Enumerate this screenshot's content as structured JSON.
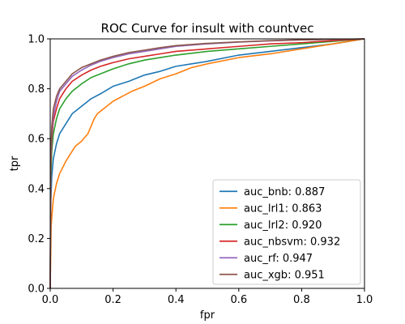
{
  "chart_data": {
    "type": "line",
    "title": "ROC Curve for insult with countvec",
    "xlabel": "fpr",
    "ylabel": "tpr",
    "xlim": [
      0,
      1
    ],
    "ylim": [
      0,
      1
    ],
    "xticks": [
      "0.0",
      "0.2",
      "0.4",
      "0.6",
      "0.8",
      "1.0"
    ],
    "yticks": [
      "0.0",
      "0.2",
      "0.4",
      "0.6",
      "0.8",
      "1.0"
    ],
    "grid": false,
    "legend_position": "lower-right",
    "series": [
      {
        "name": "auc_bnb",
        "auc": "0.887",
        "color": "#1f77b4",
        "x": [
          0,
          0.002,
          0.005,
          0.01,
          0.02,
          0.03,
          0.05,
          0.07,
          0.1,
          0.13,
          0.16,
          0.2,
          0.25,
          0.3,
          0.35,
          0.4,
          0.45,
          0.5,
          0.6,
          0.7,
          0.8,
          0.9,
          1.0
        ],
        "y": [
          0,
          0.35,
          0.45,
          0.52,
          0.58,
          0.62,
          0.66,
          0.7,
          0.73,
          0.76,
          0.78,
          0.81,
          0.83,
          0.855,
          0.87,
          0.89,
          0.9,
          0.91,
          0.935,
          0.95,
          0.965,
          0.98,
          1.0
        ]
      },
      {
        "name": "auc_lrl1",
        "auc": "0.863",
        "color": "#ff7f0e",
        "x": [
          0,
          0.003,
          0.006,
          0.01,
          0.02,
          0.03,
          0.05,
          0.07,
          0.08,
          0.1,
          0.12,
          0.13,
          0.14,
          0.15,
          0.17,
          0.2,
          0.23,
          0.26,
          0.3,
          0.35,
          0.4,
          0.45,
          0.5,
          0.6,
          0.7,
          0.8,
          0.9,
          1.0
        ],
        "y": [
          0,
          0.25,
          0.3,
          0.36,
          0.42,
          0.46,
          0.51,
          0.55,
          0.57,
          0.59,
          0.62,
          0.65,
          0.68,
          0.7,
          0.72,
          0.75,
          0.77,
          0.79,
          0.81,
          0.84,
          0.86,
          0.885,
          0.9,
          0.925,
          0.94,
          0.96,
          0.98,
          1.0
        ]
      },
      {
        "name": "auc_lrl2",
        "auc": "0.920",
        "color": "#2ca02c",
        "x": [
          0,
          0.002,
          0.005,
          0.01,
          0.02,
          0.03,
          0.05,
          0.07,
          0.1,
          0.13,
          0.16,
          0.2,
          0.25,
          0.3,
          0.35,
          0.4,
          0.5,
          0.6,
          0.7,
          0.8,
          0.9,
          1.0
        ],
        "y": [
          0,
          0.45,
          0.55,
          0.62,
          0.68,
          0.72,
          0.76,
          0.79,
          0.82,
          0.845,
          0.86,
          0.88,
          0.9,
          0.915,
          0.925,
          0.935,
          0.95,
          0.96,
          0.97,
          0.98,
          0.99,
          1.0
        ]
      },
      {
        "name": "auc_nbsvm",
        "auc": "0.932",
        "color": "#d62728",
        "x": [
          0,
          0.002,
          0.005,
          0.01,
          0.02,
          0.03,
          0.05,
          0.07,
          0.1,
          0.13,
          0.16,
          0.2,
          0.25,
          0.3,
          0.35,
          0.4,
          0.5,
          0.6,
          0.7,
          0.8,
          0.9,
          1.0
        ],
        "y": [
          0,
          0.5,
          0.6,
          0.67,
          0.72,
          0.76,
          0.8,
          0.83,
          0.855,
          0.875,
          0.89,
          0.905,
          0.92,
          0.93,
          0.94,
          0.95,
          0.96,
          0.97,
          0.98,
          0.985,
          0.993,
          1.0
        ]
      },
      {
        "name": "auc_rf",
        "auc": "0.947",
        "color": "#9467bd",
        "x": [
          0,
          0.002,
          0.005,
          0.01,
          0.02,
          0.03,
          0.05,
          0.07,
          0.1,
          0.13,
          0.16,
          0.2,
          0.25,
          0.3,
          0.35,
          0.4,
          0.5,
          0.6,
          0.7,
          0.8,
          0.9,
          1.0
        ],
        "y": [
          0,
          0.52,
          0.62,
          0.69,
          0.75,
          0.79,
          0.82,
          0.85,
          0.875,
          0.895,
          0.91,
          0.925,
          0.94,
          0.95,
          0.96,
          0.97,
          0.98,
          0.987,
          0.992,
          0.996,
          0.998,
          1.0
        ]
      },
      {
        "name": "auc_xgb",
        "auc": "0.951",
        "color": "#8c564b",
        "x": [
          0,
          0.002,
          0.005,
          0.01,
          0.02,
          0.03,
          0.05,
          0.07,
          0.1,
          0.13,
          0.16,
          0.2,
          0.25,
          0.3,
          0.35,
          0.4,
          0.5,
          0.6,
          0.7,
          0.8,
          0.9,
          1.0
        ],
        "y": [
          0,
          0.55,
          0.65,
          0.72,
          0.77,
          0.8,
          0.83,
          0.86,
          0.885,
          0.9,
          0.915,
          0.93,
          0.945,
          0.955,
          0.965,
          0.973,
          0.982,
          0.988,
          0.993,
          0.996,
          0.998,
          1.0
        ]
      }
    ]
  }
}
